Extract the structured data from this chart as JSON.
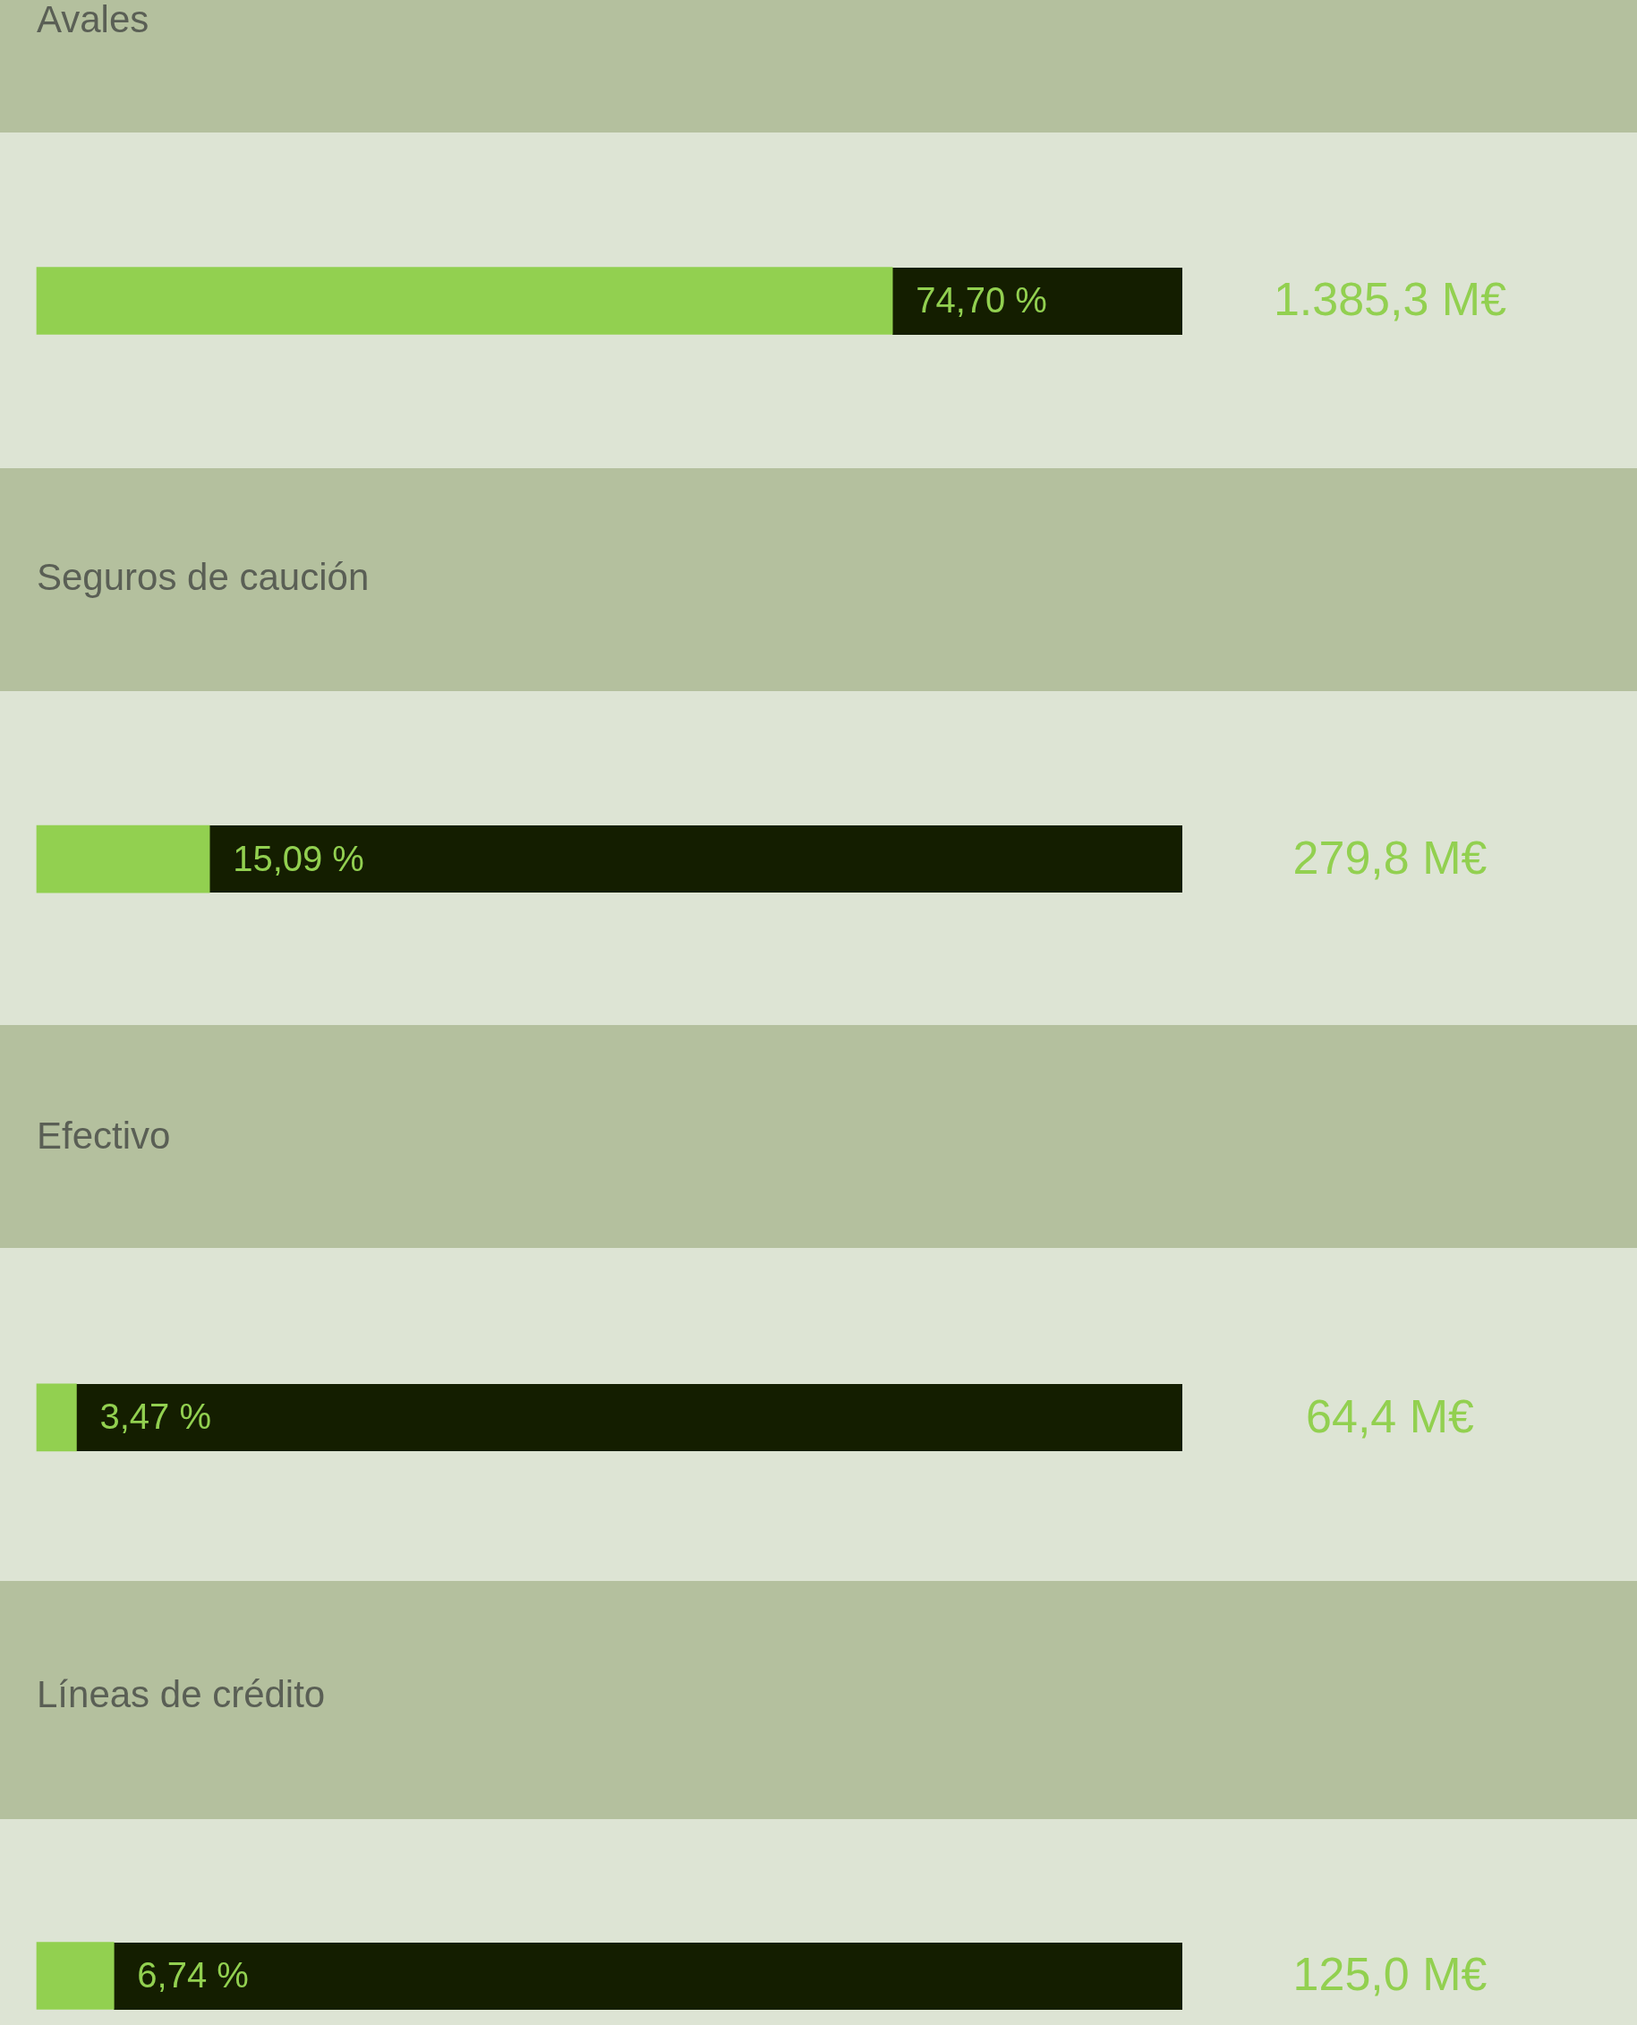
{
  "chart_data": {
    "type": "bar",
    "orientation": "horizontal",
    "categories": [
      "Avales",
      "Seguros de caución",
      "Efectivo",
      "Líneas de crédito"
    ],
    "values": [
      74.7,
      15.09,
      3.47,
      6.74
    ],
    "value_labels": [
      "74,70 %",
      "15,09 %",
      "3,47 %",
      "6,74 %"
    ],
    "color": "#92d050",
    "xlim": [
      0,
      100
    ],
    "tick_labels": false,
    "annotations": [
      "1.385,3 M€",
      "279,8 M€",
      "64,4 M€",
      "125,0 M€"
    ]
  }
}
